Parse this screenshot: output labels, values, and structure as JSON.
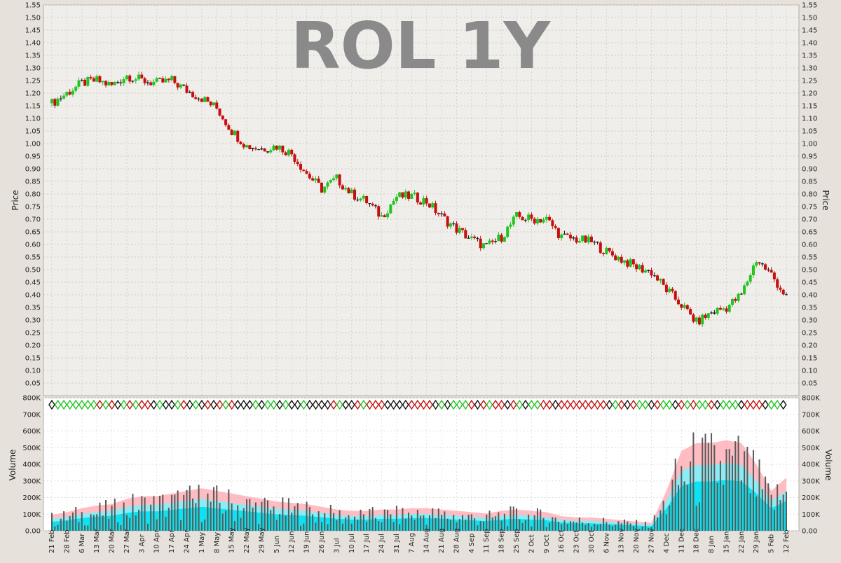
{
  "chart_data": [
    {
      "type": "candlestick",
      "title": "ROL 1Y",
      "ylabel": "Price",
      "ylim": [
        0.0,
        1.55
      ],
      "yticks": [
        "0.05",
        "0.10",
        "0.15",
        "0.20",
        "0.25",
        "0.30",
        "0.35",
        "0.40",
        "0.45",
        "0.50",
        "0.55",
        "0.60",
        "0.65",
        "0.70",
        "0.75",
        "0.80",
        "0.85",
        "0.90",
        "0.95",
        "1.00",
        "1.05",
        "1.10",
        "1.15",
        "1.20",
        "1.25",
        "1.30",
        "1.35",
        "1.40",
        "1.45",
        "1.50",
        "1.55"
      ],
      "grid": true,
      "colors": {
        "up": "#22c422",
        "down": "#c41010",
        "flat": "#111111"
      },
      "x_dates": [
        "21 Feb",
        "28 Feb",
        "6 Mar",
        "13 Mar",
        "20 Mar",
        "27 Mar",
        "3 Apr",
        "10 Apr",
        "17 Apr",
        "24 Apr",
        "1 May",
        "8 May",
        "15 May",
        "22 May",
        "29 May",
        "5 Jun",
        "12 Jun",
        "19 Jun",
        "26 Jun",
        "3 Jul",
        "10 Jul",
        "17 Jul",
        "24 Jul",
        "31 Jul",
        "7 Aug",
        "14 Aug",
        "21 Aug",
        "28 Aug",
        "4 Sep",
        "11 Sep",
        "18 Sep",
        "25 Sep",
        "2 Oct",
        "9 Oct",
        "16 Oct",
        "23 Oct",
        "30 Oct",
        "6 Nov",
        "13 Nov",
        "20 Nov",
        "27 Nov",
        "4 Dec",
        "11 Dec",
        "18 Dec",
        "8 Jan",
        "15 Jan",
        "22 Jan",
        "29 Jan",
        "5 Feb",
        "12 Feb"
      ],
      "weekly_close": [
        1.16,
        1.2,
        1.24,
        1.25,
        1.23,
        1.27,
        1.25,
        1.24,
        1.25,
        1.21,
        1.18,
        1.14,
        1.05,
        0.99,
        0.98,
        0.99,
        0.96,
        0.88,
        0.82,
        0.86,
        0.8,
        0.77,
        0.71,
        0.79,
        0.79,
        0.77,
        0.71,
        0.66,
        0.62,
        0.59,
        0.63,
        0.71,
        0.7,
        0.7,
        0.63,
        0.62,
        0.61,
        0.57,
        0.54,
        0.51,
        0.49,
        0.42,
        0.36,
        0.29,
        0.33,
        0.35,
        0.4,
        0.54,
        0.48,
        0.39
      ]
    },
    {
      "type": "bar",
      "ylabel": "Volume",
      "ylim": [
        0,
        800000
      ],
      "yticks": [
        "0.00",
        "100K",
        "200K",
        "300K",
        "400K",
        "500K",
        "600K",
        "700K",
        "800K"
      ],
      "series": [],
      "colors": {
        "bar": "#5a5a5a",
        "band_outer": "#ffb0b8",
        "band_mid": "#7ff0f8",
        "band_inner": "#00e0ee"
      },
      "weekly_avg_volume": [
        60000,
        70000,
        85000,
        95000,
        100000,
        120000,
        130000,
        130000,
        140000,
        150000,
        160000,
        150000,
        140000,
        130000,
        120000,
        110000,
        105000,
        100000,
        90000,
        80000,
        75000,
        75000,
        80000,
        80000,
        85000,
        85000,
        80000,
        75000,
        70000,
        65000,
        75000,
        80000,
        75000,
        70000,
        55000,
        50000,
        50000,
        45000,
        40000,
        35000,
        30000,
        150000,
        300000,
        330000,
        330000,
        340000,
        330000,
        250000,
        150000,
        200000
      ]
    }
  ]
}
